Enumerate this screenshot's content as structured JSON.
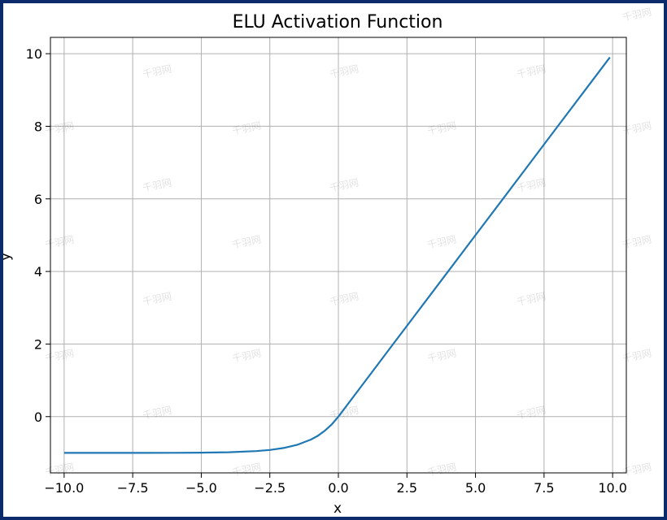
{
  "chart_data": {
    "type": "line",
    "title": "ELU Activation Function",
    "xlabel": "x",
    "ylabel": "y",
    "xlim": [
      -10.5,
      10.5
    ],
    "ylim": [
      -1.55,
      10.45
    ],
    "xticks": [
      -10,
      -7.5,
      -5,
      -2.5,
      0,
      2.5,
      5,
      7.5,
      10
    ],
    "xtick_labels": [
      "−10.0",
      "−7.5",
      "−5.0",
      "−2.5",
      "0.0",
      "2.5",
      "5.0",
      "7.5",
      "10.0"
    ],
    "yticks": [
      0,
      2,
      4,
      6,
      8,
      10
    ],
    "ytick_labels": [
      "0",
      "2",
      "4",
      "6",
      "8",
      "10"
    ],
    "grid": true,
    "color": "#1f77b4",
    "series": [
      {
        "x": [
          -10,
          -9,
          -8,
          -7,
          -6,
          -5,
          -4,
          -3,
          -2.5,
          -2,
          -1.5,
          -1,
          -0.75,
          -0.5,
          -0.25,
          0,
          1,
          2,
          3,
          4,
          5,
          6,
          7,
          8,
          9,
          9.9
        ],
        "y": [
          -1.0,
          -1.0,
          -1.0,
          -0.999,
          -0.998,
          -0.993,
          -0.982,
          -0.95,
          -0.918,
          -0.865,
          -0.777,
          -0.632,
          -0.528,
          -0.393,
          -0.221,
          0,
          1,
          2,
          3,
          4,
          5,
          6,
          7,
          8,
          9,
          9.9
        ]
      }
    ]
  },
  "watermark": "千羽网"
}
